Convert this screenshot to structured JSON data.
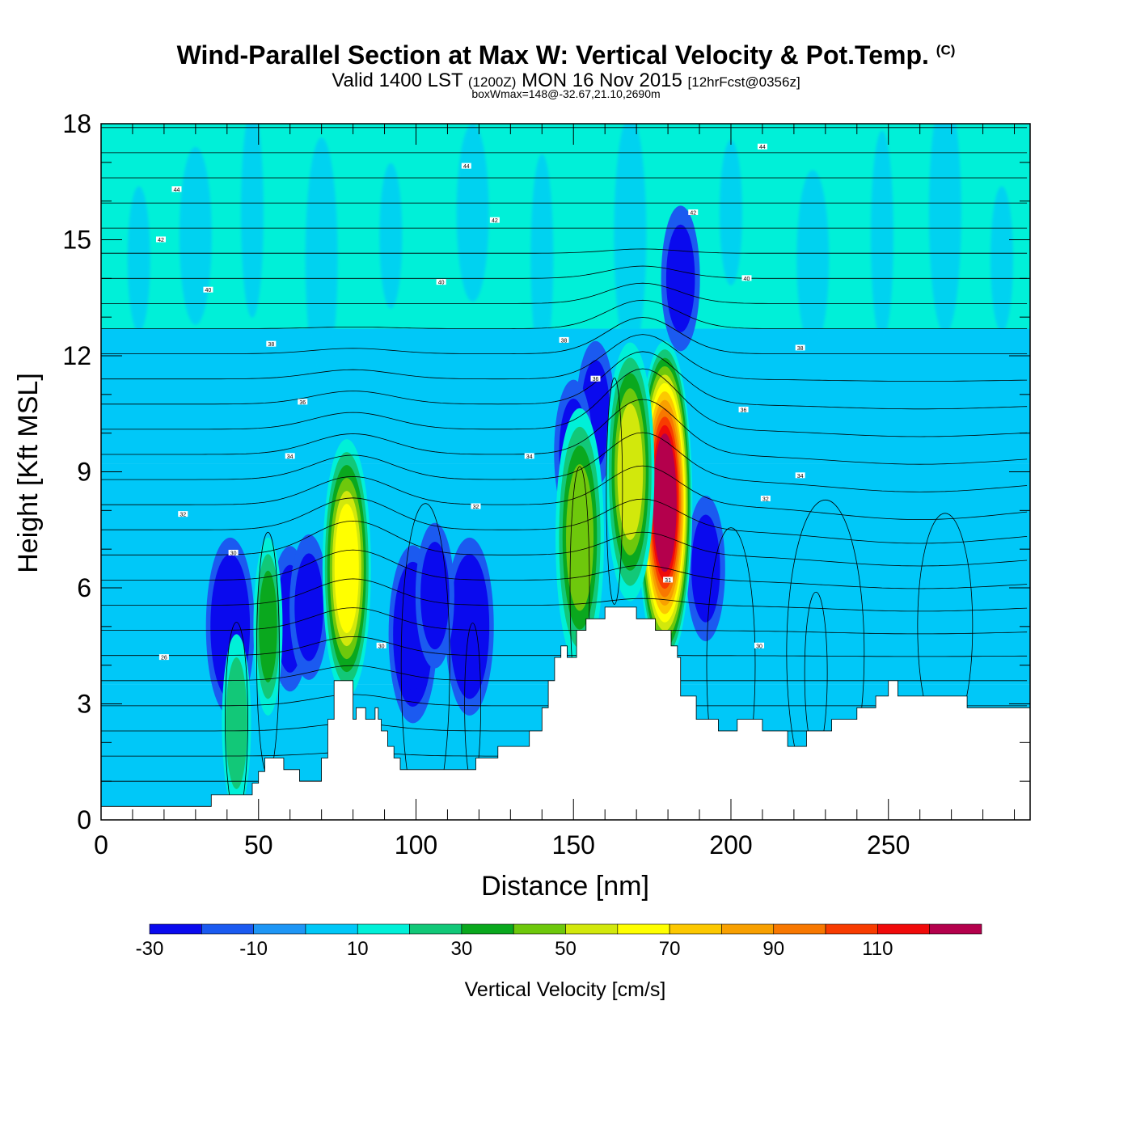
{
  "header": {
    "title": "Wind-Parallel Section at Max W: Vertical Velocity & Pot.Temp.",
    "copyright": "(C)",
    "valid_prefix": "Valid 1400 LST",
    "valid_utc": "(1200Z)",
    "valid_date": "MON 16 Nov 2015",
    "forecast": "[12hrFcst@0356z]",
    "box_wmax": "boxWmax=148@-32.67,21.10,2690m"
  },
  "chart_data": {
    "type": "heatmap",
    "xlabel": "Distance [nm]",
    "ylabel": "Height [Kft MSL]",
    "xlim": [
      0,
      295
    ],
    "ylim": [
      0,
      18
    ],
    "x_ticks": [
      0,
      50,
      100,
      150,
      200,
      250
    ],
    "y_ticks": [
      0,
      3,
      6,
      9,
      12,
      15,
      18
    ],
    "colorbar": {
      "label": "Vertical Velocity [cm/s]",
      "ticks": [
        -30,
        -10,
        10,
        30,
        50,
        70,
        90,
        110
      ],
      "levels": [
        -30,
        -20,
        -10,
        0,
        10,
        20,
        30,
        40,
        50,
        60,
        70,
        80,
        90,
        100,
        110,
        120
      ],
      "colors": [
        "#0a0aee",
        "#1b5af0",
        "#1e96f5",
        "#00c8f8",
        "#00f0d8",
        "#12c878",
        "#0aa81e",
        "#6ec80c",
        "#d2e80c",
        "#ffff00",
        "#fcc800",
        "#f8a000",
        "#f87800",
        "#f83c00",
        "#f00a0a",
        "#b4004c"
      ]
    },
    "background_w_cm_s": [
      {
        "x": [
          0,
          295
        ],
        "y": [
          12.7,
          18
        ],
        "w": 10
      },
      {
        "x": [
          0,
          295
        ],
        "y": [
          9.2,
          12.7
        ],
        "w": 0
      },
      {
        "x": [
          150,
          295
        ],
        "y": [
          3.5,
          9.2
        ],
        "w": 0
      },
      {
        "x": [
          0,
          150
        ],
        "y": [
          3.5,
          9.2
        ],
        "w": 0
      },
      {
        "x": [
          0,
          295
        ],
        "y": [
          0,
          3.5
        ],
        "w": 0
      }
    ],
    "updraft_cores": [
      {
        "x": 179,
        "y": 8.2,
        "w_max": 148
      },
      {
        "x": 168,
        "y": 9.0,
        "w_max": 50
      },
      {
        "x": 78,
        "y": 6.5,
        "w_max": 60
      },
      {
        "x": 152,
        "y": 7.3,
        "w_max": 45
      },
      {
        "x": 53,
        "y": 5.0,
        "w_max": 30
      },
      {
        "x": 43,
        "y": 2.5,
        "w_max": 25
      }
    ],
    "downdraft_cores": [
      {
        "x": 41,
        "y": 5.0,
        "w_min": -30
      },
      {
        "x": 60,
        "y": 5.2,
        "w_min": -20
      },
      {
        "x": 66,
        "y": 5.5,
        "w_min": -20
      },
      {
        "x": 99,
        "y": 4.8,
        "w_min": -30
      },
      {
        "x": 117,
        "y": 5.0,
        "w_min": -30
      },
      {
        "x": 106,
        "y": 5.8,
        "w_min": -20
      },
      {
        "x": 157,
        "y": 10.5,
        "w_min": -25
      },
      {
        "x": 184,
        "y": 14.0,
        "w_min": -20
      },
      {
        "x": 192,
        "y": 6.5,
        "w_min": -20
      },
      {
        "x": 150,
        "y": 9.5,
        "w_min": -20
      }
    ],
    "terrain_kft": {
      "x": [
        0,
        35,
        35,
        37,
        37,
        48,
        48,
        50,
        50,
        52,
        52,
        58,
        58,
        63,
        63,
        70,
        70,
        72,
        72,
        74,
        74,
        80,
        80,
        81,
        81,
        84,
        84,
        87,
        87,
        88,
        88,
        89,
        89,
        91,
        91,
        93,
        93,
        95,
        95,
        97,
        97,
        119,
        119,
        120,
        120,
        126,
        126,
        128,
        128,
        136,
        136,
        140,
        140,
        142,
        142,
        144,
        144,
        146,
        146,
        148,
        148,
        151,
        151,
        154,
        154,
        156,
        156,
        160,
        160,
        170,
        170,
        176,
        176,
        181,
        181,
        183,
        183,
        184,
        184,
        189,
        189,
        196,
        196,
        202,
        202,
        208,
        208,
        210,
        210,
        218,
        218,
        224,
        224,
        232,
        232,
        240,
        240,
        246,
        246,
        250,
        250,
        253,
        253,
        262,
        262,
        275,
        275,
        284,
        284,
        295
      ],
      "y": [
        0.35,
        0.35,
        0.65,
        0.65,
        0.65,
        0.65,
        0.95,
        0.95,
        1.25,
        1.25,
        1.6,
        1.6,
        1.3,
        1.3,
        1.0,
        1.0,
        1.6,
        1.6,
        2.6,
        2.6,
        3.6,
        3.6,
        2.6,
        2.6,
        2.9,
        2.9,
        2.6,
        2.6,
        2.9,
        2.9,
        2.6,
        2.6,
        2.3,
        2.3,
        1.9,
        1.9,
        1.6,
        1.6,
        1.3,
        1.3,
        1.3,
        1.3,
        1.6,
        1.6,
        1.6,
        1.6,
        1.9,
        1.9,
        1.9,
        1.9,
        2.3,
        2.3,
        2.9,
        2.9,
        3.6,
        3.6,
        4.2,
        4.2,
        4.5,
        4.5,
        4.2,
        4.2,
        4.9,
        4.9,
        5.2,
        5.2,
        5.2,
        5.2,
        5.5,
        5.5,
        5.2,
        5.2,
        4.9,
        4.9,
        4.5,
        4.5,
        4.2,
        4.2,
        3.2,
        3.2,
        2.6,
        2.6,
        2.3,
        2.3,
        2.6,
        2.6,
        2.6,
        2.6,
        2.3,
        2.3,
        1.9,
        1.9,
        2.3,
        2.3,
        2.6,
        2.6,
        2.9,
        2.9,
        3.2,
        3.2,
        3.6,
        3.6,
        3.2,
        3.2,
        3.2,
        3.2,
        2.9,
        2.9,
        2.9,
        2.9
      ]
    },
    "theta_contour_labels": [
      {
        "x": 24,
        "y": 16.3,
        "text": "44"
      },
      {
        "x": 116,
        "y": 16.9,
        "text": "44"
      },
      {
        "x": 210,
        "y": 17.4,
        "text": "44"
      },
      {
        "x": 19,
        "y": 15.0,
        "text": "42"
      },
      {
        "x": 125,
        "y": 15.5,
        "text": "42"
      },
      {
        "x": 188,
        "y": 15.7,
        "text": "42"
      },
      {
        "x": 34,
        "y": 13.7,
        "text": "40"
      },
      {
        "x": 108,
        "y": 13.9,
        "text": "40"
      },
      {
        "x": 205,
        "y": 14.0,
        "text": "40"
      },
      {
        "x": 54,
        "y": 12.3,
        "text": "38"
      },
      {
        "x": 147,
        "y": 12.4,
        "text": "38"
      },
      {
        "x": 222,
        "y": 12.2,
        "text": "38"
      },
      {
        "x": 64,
        "y": 10.8,
        "text": "36"
      },
      {
        "x": 157,
        "y": 11.4,
        "text": "36"
      },
      {
        "x": 204,
        "y": 10.6,
        "text": "36"
      },
      {
        "x": 60,
        "y": 9.4,
        "text": "34"
      },
      {
        "x": 136,
        "y": 9.4,
        "text": "34"
      },
      {
        "x": 222,
        "y": 8.9,
        "text": "34"
      },
      {
        "x": 26,
        "y": 7.9,
        "text": "32"
      },
      {
        "x": 119,
        "y": 8.1,
        "text": "32"
      },
      {
        "x": 211,
        "y": 8.3,
        "text": "32"
      },
      {
        "x": 42,
        "y": 6.9,
        "text": "30"
      },
      {
        "x": 89,
        "y": 4.5,
        "text": "30"
      },
      {
        "x": 180,
        "y": 6.2,
        "text": "31"
      },
      {
        "x": 209,
        "y": 4.5,
        "text": "30"
      },
      {
        "x": 20,
        "y": 4.2,
        "text": "26"
      }
    ]
  }
}
